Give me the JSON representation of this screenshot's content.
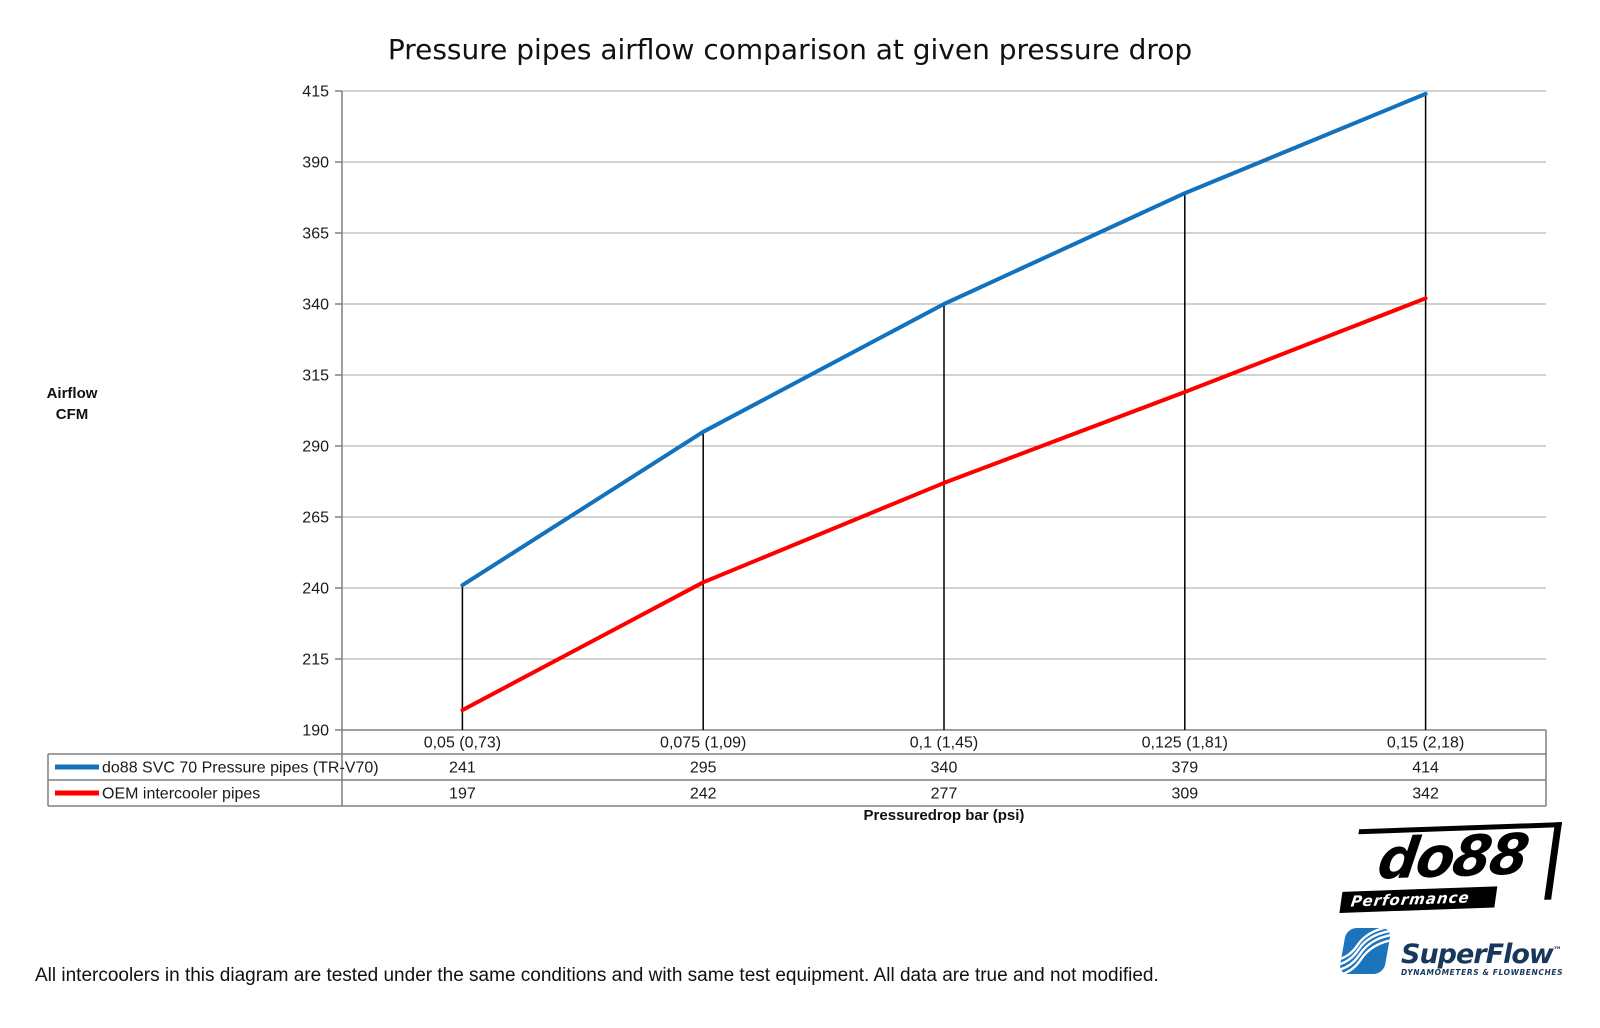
{
  "title": "Pressure pipes airflow comparison at given pressure drop",
  "chart_data": {
    "type": "line",
    "title": "Pressure pipes airflow comparison at given pressure drop",
    "ylabel_lines": [
      "Airflow",
      "CFM"
    ],
    "xlabel": "Pressuredrop bar (psi)",
    "categories": [
      "0,05 (0,73)",
      "0,075 (1,09)",
      "0,1 (1,45)",
      "0,125 (1,81)",
      "0,15 (2,18)"
    ],
    "series": [
      {
        "name": "do88 SVC 70 Pressure pipes (TR-V70)",
        "color": "#1272BE",
        "values": [
          241,
          295,
          340,
          379,
          414
        ]
      },
      {
        "name": "OEM intercooler pipes",
        "color": "#FF0000",
        "values": [
          197,
          242,
          277,
          309,
          342
        ]
      }
    ],
    "y_ticks": [
      415,
      390,
      365,
      340,
      315,
      290,
      265,
      240,
      215,
      190
    ],
    "ylim": [
      190,
      415
    ],
    "grid": "horizontal",
    "drop_lines": true,
    "legend_position": "table-left"
  },
  "footer": {
    "disclaimer": "All intercoolers in this diagram are tested under the same conditions and with same test equipment. All data are true and not modified."
  },
  "logos": {
    "do88": {
      "name": "do88",
      "subtitle": "Performance"
    },
    "superflow": {
      "name": "SuperFlow",
      "trademark": "™",
      "subtitle": "DYNAMOMETERS & FLOWBENCHES"
    }
  },
  "colors": {
    "gridline": "#A6A6A6",
    "axis": "#808080",
    "table_border": "#7F7F7F",
    "drop_line": "#000000",
    "text": "#1A1A1A",
    "superflow_blue": "#1C75BC",
    "superflow_navy": "#17375D"
  }
}
